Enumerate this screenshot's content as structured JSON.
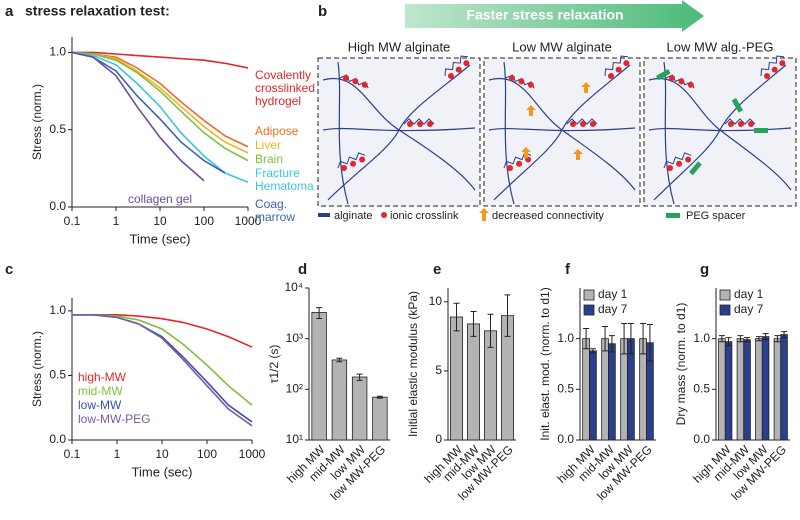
{
  "chart_data": [
    {
      "type": "line",
      "panel": "a",
      "title": "stress relaxation test:",
      "xlabel": "Time (sec)",
      "ylabel": "Stress (norm.)",
      "log_x": true,
      "xlim": [
        0.1,
        1000
      ],
      "xticks": [
        0.1,
        1,
        10,
        100,
        1000
      ],
      "ylim": [
        0,
        1.1
      ],
      "yticks": [
        {
          "value": 0,
          "label": "0.0"
        },
        {
          "value": 0.5,
          "label": "0.5"
        },
        {
          "value": 1,
          "label": "1.0"
        }
      ],
      "x": [
        0.1,
        0.3,
        1,
        3,
        10,
        30,
        100,
        300,
        1000
      ],
      "series": [
        {
          "name": "Covalently crosslinked hydrogel",
          "color": "#e3262b",
          "values": [
            1,
            1,
            0.99,
            0.98,
            0.97,
            0.96,
            0.95,
            0.93,
            0.9
          ]
        },
        {
          "name": "Adipose",
          "color": "#f26c21",
          "values": [
            1,
            0.99,
            0.97,
            0.9,
            0.8,
            0.68,
            0.56,
            0.46,
            0.39
          ]
        },
        {
          "name": "Liver",
          "color": "#f5b21c",
          "values": [
            1,
            0.99,
            0.96,
            0.88,
            0.77,
            0.65,
            0.52,
            0.42,
            0.35
          ]
        },
        {
          "name": "Brain",
          "color": "#7cc242",
          "values": [
            1,
            0.99,
            0.95,
            0.87,
            0.75,
            0.62,
            0.48,
            0.38,
            0.3
          ]
        },
        {
          "name": "Fracture Hematoma",
          "color": "#3cc4e4",
          "values": [
            1,
            0.98,
            0.92,
            0.8,
            0.65,
            0.48,
            0.33,
            0.22,
            0.16
          ]
        },
        {
          "name": "Coag. marrow",
          "color": "#3a62b0",
          "values": [
            1,
            0.97,
            0.88,
            0.72,
            0.57,
            0.42,
            0.3,
            0.22,
            null
          ]
        },
        {
          "name": "collagen gel",
          "color": "#6a4ea2",
          "values": [
            1,
            0.97,
            0.85,
            0.65,
            0.45,
            0.3,
            0.17,
            null,
            null
          ]
        }
      ]
    },
    {
      "type": "line",
      "panel": "c",
      "xlabel": "Time (sec)",
      "ylabel": "Stress (norm.)",
      "log_x": true,
      "xlim": [
        0.1,
        1000
      ],
      "xticks": [
        0.1,
        1,
        10,
        100,
        1000
      ],
      "ylim": [
        0,
        1.1
      ],
      "yticks": [
        {
          "value": 0,
          "label": "0.0"
        },
        {
          "value": 0.5,
          "label": "0.5"
        },
        {
          "value": 1,
          "label": "1.0"
        }
      ],
      "x": [
        0.1,
        0.3,
        1,
        3,
        10,
        30,
        100,
        300,
        1000
      ],
      "series": [
        {
          "name": "high-MW",
          "color": "#e3262b",
          "values": [
            0.97,
            0.97,
            0.97,
            0.96,
            0.94,
            0.91,
            0.86,
            0.8,
            0.72
          ]
        },
        {
          "name": "mid-MW",
          "color": "#7cc242",
          "values": [
            0.97,
            0.97,
            0.96,
            0.93,
            0.86,
            0.74,
            0.58,
            0.42,
            0.27
          ]
        },
        {
          "name": "low-MW",
          "color": "#3a4fa8",
          "values": [
            0.97,
            0.97,
            0.95,
            0.9,
            0.8,
            0.64,
            0.45,
            0.27,
            0.14
          ]
        },
        {
          "name": "low-MW-PEG",
          "color": "#7a5aa8",
          "values": [
            0.97,
            0.97,
            0.95,
            0.9,
            0.79,
            0.62,
            0.42,
            0.24,
            0.11
          ]
        }
      ]
    },
    {
      "type": "bar",
      "panel": "d",
      "ylabel": "τ1/2 (s)",
      "log_y": true,
      "color": "#b3b3b3",
      "ylim": [
        10,
        10000
      ],
      "yticks": [
        {
          "value": 10,
          "label": "10¹"
        },
        {
          "value": 100,
          "label": "10²"
        },
        {
          "value": 1000,
          "label": "10³"
        },
        {
          "value": 10000,
          "label": "10⁴"
        }
      ],
      "categories": [
        "high MW",
        "mid-MW",
        "low MW",
        "low MW-PEG"
      ],
      "values": [
        3300,
        380,
        175,
        70
      ],
      "errors": [
        800,
        30,
        25,
        3
      ]
    },
    {
      "type": "bar",
      "panel": "e",
      "ylabel": "Initial elastic modulus (kPa)",
      "color": "#b3b3b3",
      "ylim": [
        0,
        11
      ],
      "yticks": [
        0,
        5,
        10
      ],
      "categories": [
        "high MW",
        "mid-MW",
        "low MW",
        "low MW-PEG"
      ],
      "values": [
        8.9,
        8.4,
        7.9,
        9.0
      ],
      "errors": [
        1.0,
        0.9,
        1.2,
        1.5
      ]
    },
    {
      "type": "grouped_bar",
      "panel": "f",
      "ylabel": "Init. elast. mod. (norm. to d1)",
      "ylim": [
        0,
        1.5
      ],
      "yticks": [
        {
          "value": 0,
          "label": "0.0"
        },
        {
          "value": 0.5,
          "label": "0.5"
        },
        {
          "value": 1,
          "label": "1.0"
        }
      ],
      "categories": [
        "high MW",
        "mid-MW",
        "low MW",
        "low MW-PEG"
      ],
      "series": [
        {
          "name": "day 1",
          "color": "#b3b3b3",
          "values": [
            1,
            1,
            1,
            1
          ],
          "errors": [
            0.1,
            0.12,
            0.15,
            0.15
          ]
        },
        {
          "name": "day 7",
          "color": "#2b3f8c",
          "values": [
            0.88,
            0.95,
            1.0,
            0.96
          ],
          "errors": [
            0.02,
            0.08,
            0.15,
            0.18
          ]
        }
      ]
    },
    {
      "type": "grouped_bar",
      "panel": "g",
      "ylabel": "Dry mass (norm. to d1)",
      "ylim": [
        0,
        1.5
      ],
      "yticks": [
        {
          "value": 0,
          "label": "0.0"
        },
        {
          "value": 0.5,
          "label": "0.5"
        },
        {
          "value": 1,
          "label": "1.0"
        }
      ],
      "categories": [
        "high MW",
        "mid-MW",
        "low MW",
        "low MW-PEG"
      ],
      "series": [
        {
          "name": "day 1",
          "color": "#b3b3b3",
          "values": [
            1,
            1,
            1,
            1
          ],
          "errors": [
            0.03,
            0.03,
            0.02,
            0.03
          ]
        },
        {
          "name": "day 7",
          "color": "#2b3f8c",
          "values": [
            0.97,
            0.99,
            1.02,
            1.04
          ],
          "errors": [
            0.04,
            0.02,
            0.03,
            0.03
          ]
        }
      ]
    }
  ],
  "panel_b": {
    "panel": "b",
    "arrow": "Faster stress relaxation",
    "headers": [
      "High MW alginate",
      "Low MW alginate",
      "Low MW alg.-PEG"
    ],
    "legend": [
      "alginate",
      "ionic crosslink",
      "decreased connectivity",
      "PEG spacer"
    ]
  }
}
